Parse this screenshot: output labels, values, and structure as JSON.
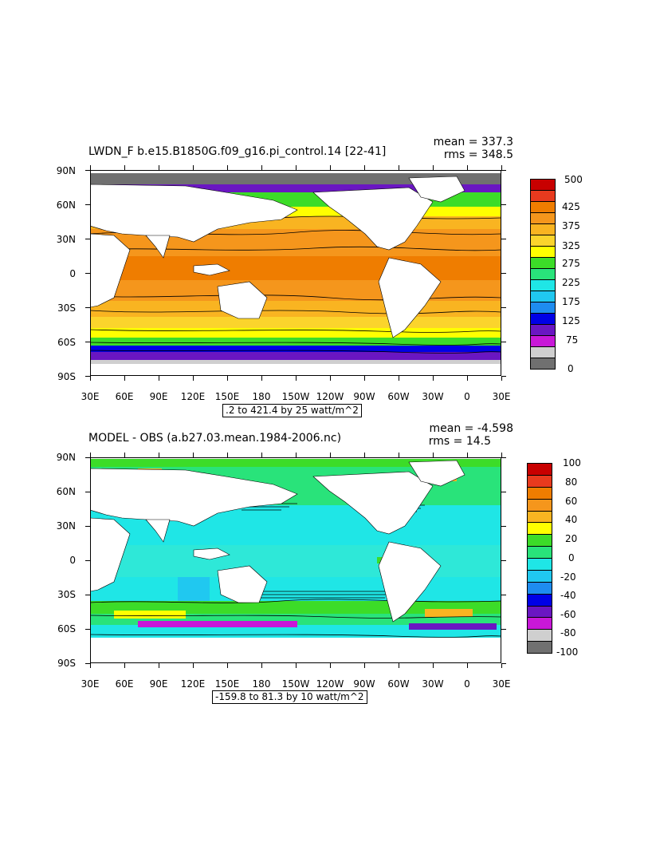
{
  "lat_labels": [
    "90N",
    "60N",
    "30N",
    "0",
    "30S",
    "60S",
    "90S"
  ],
  "lon_labels": [
    "30E",
    "60E",
    "90E",
    "120E",
    "150E",
    "180",
    "150W",
    "120W",
    "90W",
    "60W",
    "30W",
    "0",
    "30E"
  ],
  "top_panel": {
    "title": "LWDN_F b.e15.B1850G.f09_g16.pi_control.14 [22-41]",
    "mean_text": "mean = 337.3",
    "rms_text": "rms = 348.5",
    "range_text": ".2 to 421.4 by 25 watt/m^2",
    "colorbar": {
      "labels": [
        "500",
        "425",
        "375",
        "325",
        "275",
        "225",
        "175",
        "125",
        "75",
        "0"
      ],
      "colors": [
        "#c80000",
        "#e83a1e",
        "#ef7d00",
        "#f5961c",
        "#f9b421",
        "#fbd42c",
        "#ffff00",
        "#3cdc28",
        "#29e37a",
        "#1fe6e6",
        "#20c8f0",
        "#1e8cf0",
        "#0000e6",
        "#6a16c2",
        "#c818d8",
        "#cfcfcf",
        "#707070"
      ]
    }
  },
  "bottom_panel": {
    "title": "MODEL - OBS (a.b27.03.mean.1984-2006.nc)",
    "mean_text": "mean = -4.598",
    "rms_text": "rms = 14.5",
    "range_text": "-159.8 to 81.3 by 10 watt/m^2",
    "colorbar": {
      "labels": [
        "100",
        "80",
        "60",
        "40",
        "20",
        "0",
        "-20",
        "-40",
        "-60",
        "-80",
        "-100"
      ],
      "colors": [
        "#c80000",
        "#e83a1e",
        "#ef7d00",
        "#f5961c",
        "#f9b421",
        "#ffff00",
        "#3cdc28",
        "#29e37a",
        "#1fe6e6",
        "#20c8f0",
        "#1e8cf0",
        "#0000e6",
        "#6a16c2",
        "#c818d8",
        "#cfcfcf",
        "#707070"
      ]
    }
  }
}
